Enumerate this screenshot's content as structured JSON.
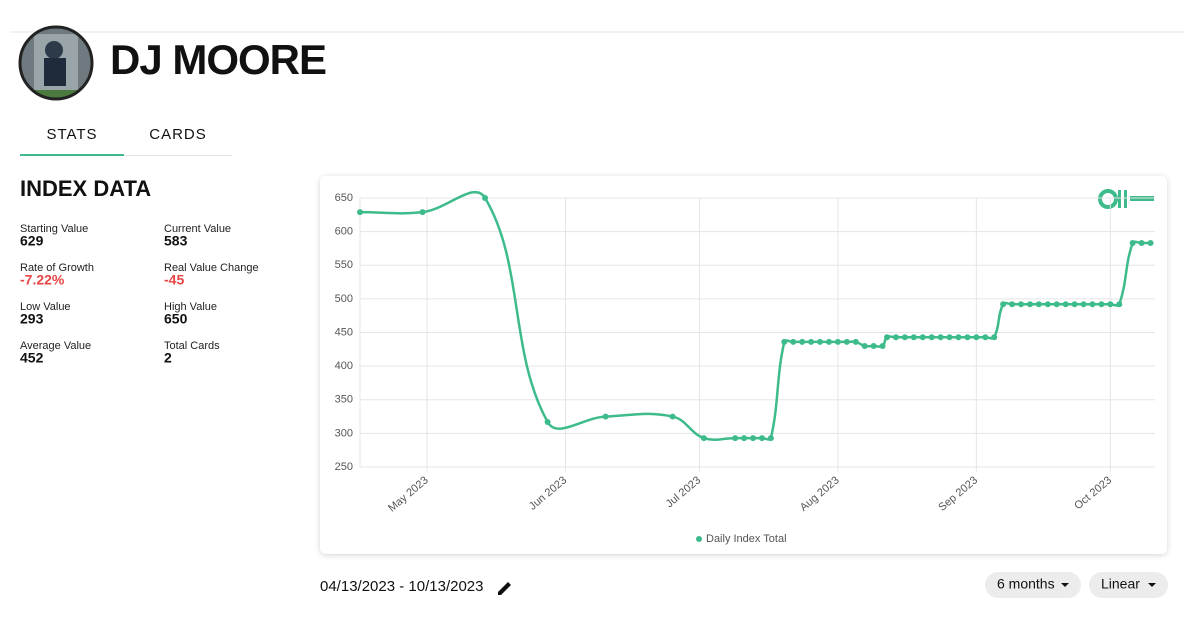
{
  "player": {
    "name": "DJ MOORE"
  },
  "tabs": [
    "STATS",
    "CARDS"
  ],
  "index_data": {
    "title": "INDEX DATA",
    "stats": [
      {
        "label": "Starting Value",
        "value": 629
      },
      {
        "label": "Current Value",
        "value": 583
      },
      {
        "label": "Rate of Growth",
        "value": "-7.22%"
      },
      {
        "label": "Real Value Change",
        "value": -45
      },
      {
        "label": "Low Value",
        "value": 293
      },
      {
        "label": "High Value",
        "value": 650
      },
      {
        "label": "Average Value",
        "value": 452
      },
      {
        "label": "Total Cards",
        "value": 2
      }
    ]
  },
  "date_range": "04/13/2023 - 10/13/2023",
  "controls": [
    "6 months",
    "Linear"
  ],
  "chart_data": {
    "type": "line",
    "x": [
      "2023-04-16",
      "2023-04-30",
      "2023-05-14",
      "2023-05-28",
      "2023-06-10",
      "2023-06-25",
      "2023-07-02",
      "2023-07-09",
      "2023-07-11",
      "2023-07-13",
      "2023-07-15",
      "2023-07-17",
      "2023-07-20",
      "2023-07-22",
      "2023-07-24",
      "2023-07-26",
      "2023-07-28",
      "2023-07-30",
      "2023-08-01",
      "2023-08-03",
      "2023-08-05",
      "2023-08-07",
      "2023-08-09",
      "2023-08-11",
      "2023-08-12",
      "2023-08-14",
      "2023-08-16",
      "2023-08-18",
      "2023-08-20",
      "2023-08-22",
      "2023-08-24",
      "2023-08-26",
      "2023-08-28",
      "2023-08-30",
      "2023-09-01",
      "2023-09-03",
      "2023-09-05",
      "2023-09-07",
      "2023-09-09",
      "2023-09-11",
      "2023-09-13",
      "2023-09-15",
      "2023-09-17",
      "2023-09-19",
      "2023-09-21",
      "2023-09-23",
      "2023-09-25",
      "2023-09-27",
      "2023-09-29",
      "2023-10-01",
      "2023-10-03",
      "2023-10-06",
      "2023-10-08",
      "2023-10-10"
    ],
    "series": [
      {
        "name": "Daily Index Total",
        "color": "#3dbb8b",
        "values": [
          629,
          629,
          650,
          317,
          325,
          325,
          293,
          293,
          293,
          293,
          293,
          293,
          436,
          436,
          436,
          436,
          436,
          436,
          436,
          436,
          436,
          430,
          430,
          430,
          443,
          443,
          443,
          443,
          443,
          443,
          443,
          443,
          443,
          443,
          443,
          443,
          443,
          492,
          492,
          492,
          492,
          492,
          492,
          492,
          492,
          492,
          492,
          492,
          492,
          492,
          492,
          583,
          583,
          583
        ]
      }
    ],
    "xlim": [
      "2023-04-16",
      "2023-10-11"
    ],
    "xticks": [
      {
        "value": "2023-05-01",
        "label": "May 2023"
      },
      {
        "value": "2023-06-01",
        "label": "Jun 2023"
      },
      {
        "value": "2023-07-01",
        "label": "Jul 2023"
      },
      {
        "value": "2023-08-01",
        "label": "Aug 2023"
      },
      {
        "value": "2023-09-01",
        "label": "Sep 2023"
      },
      {
        "value": "2023-10-01",
        "label": "Oct 2023"
      }
    ],
    "ylim": [
      250,
      650
    ],
    "yticks": [
      250,
      300,
      350,
      400,
      450,
      500,
      550,
      600,
      650
    ],
    "grid": true
  }
}
